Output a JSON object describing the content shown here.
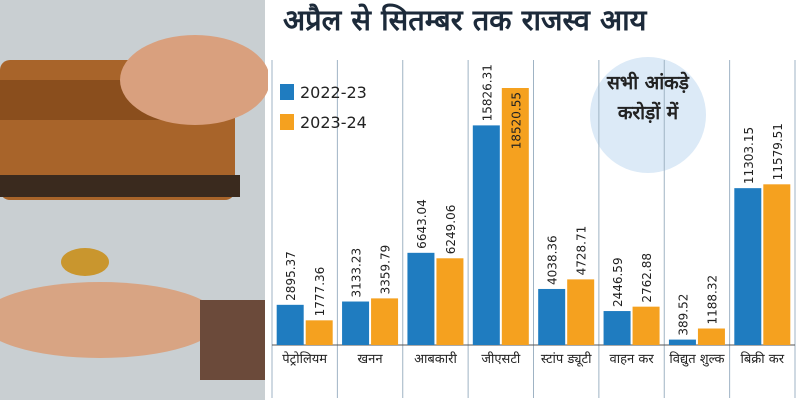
{
  "chart_data": {
    "type": "bar",
    "title": "अप्रैल से सितम्बर तक राजस्व आय",
    "annotation": "सभी आंकड़े करोड़ों में",
    "categories": [
      "पेट्रोलियम",
      "खनन",
      "आबकारी",
      "जीएसटी",
      "स्टांप ड्यूटी",
      "वाहन कर",
      "विद्युत शुल्क",
      "बिक्री कर"
    ],
    "series": [
      {
        "name": "2022-23",
        "color": "#1f7cc0",
        "values": [
          2895.37,
          3133.23,
          6643.04,
          15826.31,
          4038.36,
          2446.59,
          389.52,
          11303.15
        ]
      },
      {
        "name": "2023-24",
        "color": "#f5a11f",
        "values": [
          1777.36,
          3359.79,
          6249.06,
          18520.55,
          4728.71,
          2762.88,
          1188.32,
          11579.51
        ]
      }
    ]
  }
}
